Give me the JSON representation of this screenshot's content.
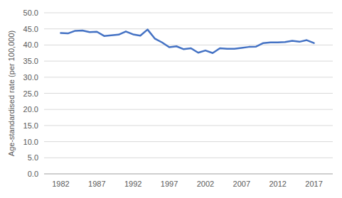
{
  "chart_data": {
    "type": "line",
    "y_label": "Age-standardised rate (per 100,000)",
    "x": [
      1982,
      1983,
      1984,
      1985,
      1986,
      1987,
      1988,
      1989,
      1990,
      1991,
      1992,
      1993,
      1994,
      1995,
      1996,
      1997,
      1998,
      1999,
      2000,
      2001,
      2002,
      2003,
      2004,
      2005,
      2006,
      2007,
      2008,
      2009,
      2010,
      2011,
      2012,
      2013,
      2014,
      2015,
      2016,
      2017
    ],
    "values": [
      43.7,
      43.6,
      44.4,
      44.5,
      44.0,
      44.1,
      42.8,
      43.0,
      43.2,
      44.2,
      43.3,
      42.9,
      44.8,
      42.0,
      40.8,
      39.3,
      39.6,
      38.7,
      39.0,
      37.6,
      38.3,
      37.5,
      39.0,
      38.8,
      38.8,
      39.1,
      39.4,
      39.5,
      40.6,
      40.8,
      40.8,
      40.9,
      41.3,
      41.0,
      41.5,
      40.6
    ],
    "color": "#4472c4",
    "xlim": [
      1979.7,
      2019.6
    ],
    "xticks": [
      1982,
      1987,
      1992,
      1997,
      2002,
      2007,
      2012,
      2017
    ],
    "ylim": [
      0,
      50
    ],
    "yticks": [
      {
        "value": 0,
        "label": "0.0"
      },
      {
        "value": 5,
        "label": "5.0"
      },
      {
        "value": 10,
        "label": "10.0"
      },
      {
        "value": 15,
        "label": "15.0"
      },
      {
        "value": 20,
        "label": "20.0"
      },
      {
        "value": 25,
        "label": "25.0"
      },
      {
        "value": 30,
        "label": "30.0"
      },
      {
        "value": 35,
        "label": "35.0"
      },
      {
        "value": 40,
        "label": "40.0"
      },
      {
        "value": 45,
        "label": "45.0"
      },
      {
        "value": 50,
        "label": "50.0"
      }
    ],
    "grid": true
  }
}
